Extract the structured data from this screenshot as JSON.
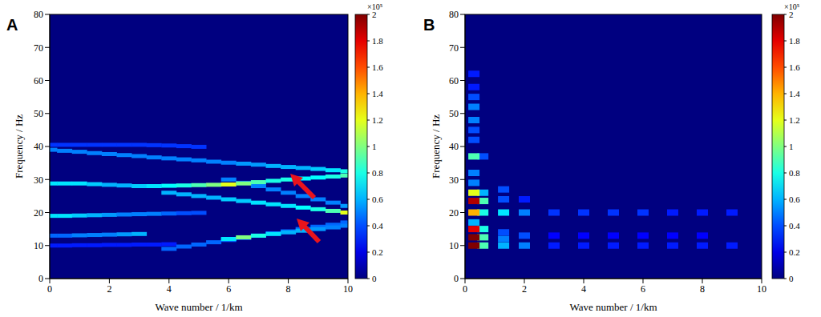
{
  "chart_data": [
    {
      "type": "heatmap",
      "title": "A",
      "x_label": "Wave number / 1/km",
      "y_label": "Frequency / Hz",
      "xlim": [
        0,
        10
      ],
      "ylim": [
        0,
        80
      ],
      "xticks": [
        0,
        2,
        4,
        6,
        8,
        10
      ],
      "yticks": [
        0,
        10,
        20,
        30,
        40,
        50,
        60,
        70,
        80
      ],
      "colorbar": {
        "range": [
          0,
          2
        ],
        "ticks": [
          0,
          0.2,
          0.4,
          0.6,
          0.8,
          1,
          1.2,
          1.4,
          1.6,
          1.8,
          2
        ],
        "label": "×10⁵"
      },
      "cells": [
        [
          0,
          10,
          0.3
        ],
        [
          0.5,
          10,
          0.3
        ],
        [
          1,
          10.1,
          0.3
        ],
        [
          1.5,
          10.1,
          0.3
        ],
        [
          2,
          10.2,
          0.3
        ],
        [
          2.5,
          10.2,
          0.3
        ],
        [
          3,
          10.3,
          0.3
        ],
        [
          3.5,
          10.3,
          0.3
        ],
        [
          4,
          10.4,
          0.3
        ],
        [
          0,
          40.5,
          0.35
        ],
        [
          0.5,
          40.5,
          0.35
        ],
        [
          1,
          40.5,
          0.35
        ],
        [
          1.5,
          40.5,
          0.35
        ],
        [
          2,
          40.5,
          0.35
        ],
        [
          2.5,
          40.5,
          0.35
        ],
        [
          3,
          40.5,
          0.35
        ],
        [
          3.5,
          40.4,
          0.35
        ],
        [
          4,
          40.3,
          0.35
        ],
        [
          4.5,
          40.1,
          0.35
        ],
        [
          5,
          39.9,
          0.35
        ],
        [
          0,
          39,
          0.5
        ],
        [
          0.5,
          38.7,
          0.5
        ],
        [
          1,
          38.4,
          0.5
        ],
        [
          1.5,
          38,
          0.5
        ],
        [
          2,
          37.7,
          0.5
        ],
        [
          2.5,
          37.4,
          0.5
        ],
        [
          3,
          37.1,
          0.5
        ],
        [
          3.5,
          36.7,
          0.5
        ],
        [
          4,
          36.4,
          0.5
        ],
        [
          4.5,
          36.1,
          0.5
        ],
        [
          5,
          35.8,
          0.5
        ],
        [
          5.5,
          35.4,
          0.5
        ],
        [
          6,
          35.1,
          0.5
        ],
        [
          6.5,
          34.8,
          0.55
        ],
        [
          7,
          34.5,
          0.55
        ],
        [
          7.5,
          34.1,
          0.6
        ],
        [
          8,
          33.8,
          0.6
        ],
        [
          8.5,
          33.5,
          0.6
        ],
        [
          9,
          33.2,
          0.65
        ],
        [
          9.5,
          32.8,
          0.7
        ],
        [
          10,
          32.5,
          0.8
        ],
        [
          0,
          13,
          0.45
        ],
        [
          0.5,
          13,
          0.45
        ],
        [
          1,
          13.1,
          0.5
        ],
        [
          1.5,
          13.2,
          0.5
        ],
        [
          2,
          13.3,
          0.5
        ],
        [
          2.5,
          13.4,
          0.55
        ],
        [
          3,
          13.5,
          0.6
        ],
        [
          0,
          19,
          0.7
        ],
        [
          0.5,
          19,
          0.7
        ],
        [
          1,
          19.1,
          0.65
        ],
        [
          1.5,
          19.2,
          0.6
        ],
        [
          2,
          19.3,
          0.55
        ],
        [
          2.5,
          19.4,
          0.5
        ],
        [
          3,
          19.5,
          0.5
        ],
        [
          3.5,
          19.6,
          0.5
        ],
        [
          4,
          19.7,
          0.45
        ],
        [
          4.5,
          19.8,
          0.4
        ],
        [
          5,
          19.9,
          0.4
        ],
        [
          4,
          9,
          0.45
        ],
        [
          4.5,
          9.7,
          0.45
        ],
        [
          5,
          10.3,
          0.45
        ],
        [
          5.5,
          11,
          0.45
        ],
        [
          6,
          11.7,
          0.45
        ],
        [
          6.5,
          12.3,
          0.45
        ],
        [
          7,
          13,
          0.45
        ],
        [
          7.5,
          13.7,
          0.45
        ],
        [
          8,
          14.3,
          0.45
        ],
        [
          8.5,
          15,
          0.45
        ],
        [
          9,
          15.7,
          0.45
        ],
        [
          9.5,
          16.3,
          0.45
        ],
        [
          10,
          17,
          0.45
        ],
        [
          6,
          12,
          0.7
        ],
        [
          6.5,
          12.5,
          1
        ],
        [
          7,
          13,
          0.8
        ],
        [
          7.5,
          13.5,
          0.7
        ],
        [
          8,
          14,
          0.6
        ],
        [
          8.5,
          14.5,
          0.6
        ],
        [
          9,
          15,
          0.55
        ],
        [
          9.5,
          15.5,
          0.5
        ],
        [
          10,
          16,
          0.5
        ],
        [
          6,
          30,
          0.5
        ],
        [
          6.5,
          29,
          0.5
        ],
        [
          7,
          28,
          0.5
        ],
        [
          7.5,
          27,
          0.5
        ],
        [
          8,
          26,
          0.5
        ],
        [
          8.5,
          25,
          0.5
        ],
        [
          9,
          24,
          0.5
        ],
        [
          9.5,
          23,
          0.5
        ],
        [
          10,
          22,
          0.55
        ],
        [
          4,
          26,
          0.6
        ],
        [
          4.5,
          25.5,
          0.6
        ],
        [
          5,
          25,
          0.6
        ],
        [
          5.5,
          24.5,
          0.6
        ],
        [
          6,
          24,
          0.65
        ],
        [
          6.5,
          23.5,
          0.65
        ],
        [
          7,
          23,
          0.7
        ],
        [
          7.5,
          22.5,
          0.7
        ],
        [
          8,
          22,
          0.7
        ],
        [
          8.5,
          21.5,
          0.75
        ],
        [
          9,
          21,
          0.8
        ],
        [
          9.5,
          20.5,
          0.9
        ],
        [
          10,
          20,
          1.2
        ],
        [
          0,
          28.8,
          0.7
        ],
        [
          0.5,
          28.8,
          0.7
        ],
        [
          1,
          28.8,
          0.7
        ],
        [
          1.5,
          28.6,
          0.65
        ],
        [
          2,
          28.4,
          0.6
        ],
        [
          2.5,
          28.2,
          0.6
        ],
        [
          3,
          28,
          0.65
        ],
        [
          3.5,
          28,
          0.7
        ],
        [
          4,
          28.1,
          0.75
        ],
        [
          4.5,
          28.2,
          0.8
        ],
        [
          5,
          28.3,
          0.9
        ],
        [
          5.5,
          28.4,
          1
        ],
        [
          6,
          28.5,
          1.2
        ],
        [
          6.5,
          28.8,
          1
        ],
        [
          7,
          29.2,
          0.9
        ],
        [
          7.5,
          29.6,
          0.8
        ],
        [
          8,
          30,
          0.8
        ],
        [
          8.5,
          30.3,
          0.75
        ],
        [
          9,
          30.6,
          0.75
        ],
        [
          9.5,
          30.9,
          0.8
        ],
        [
          10,
          31.2,
          0.9
        ]
      ]
    },
    {
      "type": "heatmap",
      "title": "B",
      "x_label": "Wave number / 1/km",
      "y_label": "Frequency / Hz",
      "xlim": [
        0,
        10
      ],
      "ylim": [
        0,
        80
      ],
      "xticks": [
        0,
        2,
        4,
        6,
        8,
        10
      ],
      "yticks": [
        0,
        10,
        20,
        30,
        40,
        50,
        60,
        70,
        80
      ],
      "colorbar": {
        "range": [
          0,
          2
        ],
        "ticks": [
          0,
          0.2,
          0.4,
          0.6,
          0.8,
          1,
          1.2,
          1.4,
          1.6,
          1.8,
          2
        ],
        "label": "×10⁵"
      },
      "cells": [
        [
          3,
          10,
          0.3
        ],
        [
          4,
          10,
          0.3
        ],
        [
          5,
          10,
          0.3
        ],
        [
          6,
          10,
          0.3
        ],
        [
          7,
          10,
          0.3
        ],
        [
          8,
          10,
          0.3
        ],
        [
          9,
          10,
          0.3
        ],
        [
          3,
          20,
          0.35
        ],
        [
          4,
          20,
          0.35
        ],
        [
          5,
          20,
          0.35
        ],
        [
          6,
          20,
          0.35
        ],
        [
          7,
          20,
          0.3
        ],
        [
          8,
          20,
          0.3
        ],
        [
          9,
          20,
          0.3
        ],
        [
          3,
          13,
          0.25
        ],
        [
          4,
          13,
          0.25
        ],
        [
          5,
          13,
          0.25
        ],
        [
          6,
          13,
          0.25
        ],
        [
          7,
          13,
          0.25
        ],
        [
          8,
          13,
          0.25
        ],
        [
          2,
          10,
          0.5
        ],
        [
          2,
          13,
          0.4
        ],
        [
          2,
          20,
          0.5
        ],
        [
          2,
          24,
          0.3
        ],
        [
          1.3,
          10,
          0.6
        ],
        [
          1.3,
          12,
          0.5
        ],
        [
          1.3,
          14,
          0.4
        ],
        [
          1.3,
          20,
          0.7
        ],
        [
          1.3,
          24,
          0.4
        ],
        [
          1.3,
          27,
          0.4
        ],
        [
          0.6,
          10,
          0.9
        ],
        [
          0.6,
          12.5,
          0.9
        ],
        [
          0.6,
          15,
          0.8
        ],
        [
          0.6,
          20,
          0.8
        ],
        [
          0.6,
          23.5,
          0.9
        ],
        [
          0.6,
          26,
          0.6
        ],
        [
          0.6,
          37,
          0.4
        ],
        [
          0.3,
          62,
          0.3
        ],
        [
          0.3,
          58,
          0.3
        ],
        [
          0.3,
          55,
          0.4
        ],
        [
          0.3,
          52,
          0.5
        ],
        [
          0.3,
          48,
          0.5
        ],
        [
          0.3,
          45,
          0.4
        ],
        [
          0.3,
          42,
          0.4
        ],
        [
          0.3,
          37,
          0.9
        ],
        [
          0.3,
          32,
          0.5
        ],
        [
          0.3,
          29,
          0.5
        ],
        [
          0.3,
          26,
          1.2
        ],
        [
          0.3,
          17,
          0.6
        ],
        [
          0.3,
          20,
          1.4
        ],
        [
          0.3,
          15,
          1.8
        ],
        [
          0.3,
          23.5,
          1.9
        ],
        [
          0.3,
          12.5,
          2
        ],
        [
          0.3,
          10,
          2
        ]
      ]
    }
  ]
}
